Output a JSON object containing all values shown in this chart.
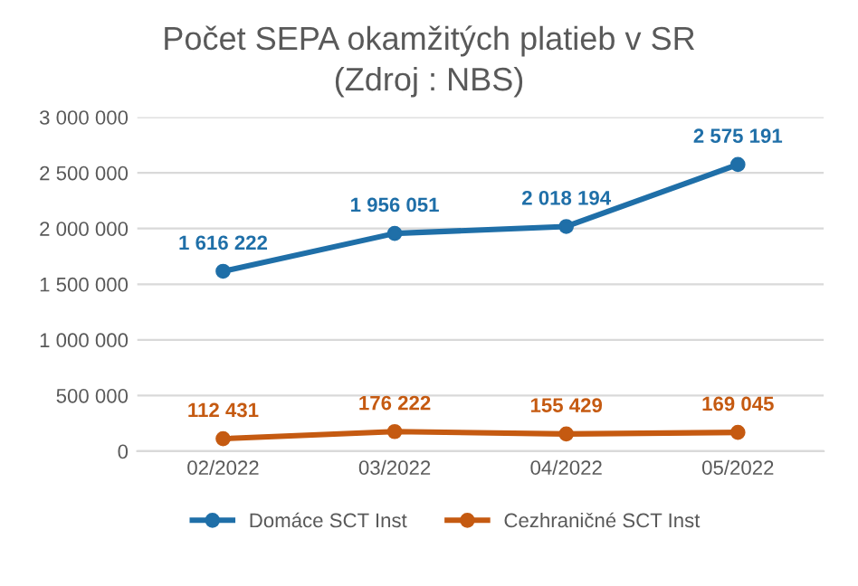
{
  "chart_data": {
    "type": "line",
    "title": "Počet SEPA okamžitých platieb v SR",
    "subtitle": "(Zdroj : NBS)",
    "categories": [
      "02/2022",
      "03/2022",
      "04/2022",
      "05/2022"
    ],
    "series": [
      {
        "name": "Domáce SCT Inst",
        "color": "#1f6fa8",
        "values": [
          1616222,
          1956051,
          2018194,
          2575191
        ],
        "value_labels": [
          "1 616 222",
          "1 956 051",
          "2 018 194",
          "2 575 191"
        ]
      },
      {
        "name": "Cezhraničné SCT Inst",
        "color": "#c55a11",
        "values": [
          112431,
          176222,
          155429,
          169045
        ],
        "value_labels": [
          "112 431",
          "176 222",
          "155 429",
          "169 045"
        ]
      }
    ],
    "ylim": [
      0,
      3000000
    ],
    "yticks": [
      {
        "value": 0,
        "label": "0"
      },
      {
        "value": 500000,
        "label": "500 000"
      },
      {
        "value": 1000000,
        "label": "1 000 000"
      },
      {
        "value": 1500000,
        "label": "1 500 000"
      },
      {
        "value": 2000000,
        "label": "2 000 000"
      },
      {
        "value": 2500000,
        "label": "2 500 000"
      },
      {
        "value": 3000000,
        "label": "3 000 000"
      }
    ],
    "grid": "y",
    "legend": "bottom",
    "marker": "circle",
    "line_style": "solid"
  }
}
